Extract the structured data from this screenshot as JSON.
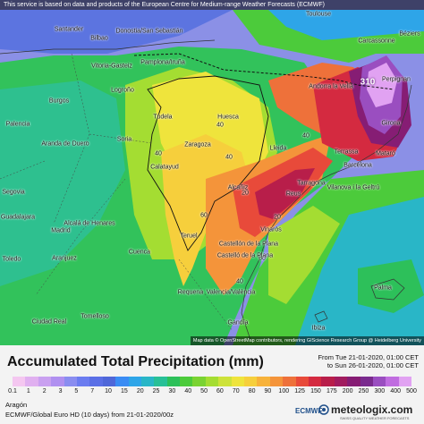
{
  "notice": "This service is based on data and products of the European Centre for Medium-range Weather Forecasts (ECMWF)",
  "attribution": "Map data © OpenStreetMap contributors, rendering GIScience Research Group @ Heidelberg University",
  "colors": {
    "scale": [
      "#f4c7f0",
      "#e0b0f0",
      "#c9a0f0",
      "#b090f0",
      "#8a8df0",
      "#6b7cf0",
      "#5a6fe6",
      "#4f67d9",
      "#3a8cf4",
      "#2ea5e8",
      "#29b6c7",
      "#28c097",
      "#2dc05a",
      "#4ccb3b",
      "#7ad332",
      "#a4dd32",
      "#cde23a",
      "#efe43c",
      "#f6cf3c",
      "#f7b23a",
      "#f4943a",
      "#ee713a",
      "#e84a3a",
      "#d42a40",
      "#b81e4a",
      "#a11c5f",
      "#861d74",
      "#7a2b8e",
      "#9a4ec0",
      "#c06de0",
      "#e1a2f2"
    ]
  },
  "legend": {
    "title": "Accumulated Total Precipitation (mm)",
    "from_line": "From Tue 21-01-2020, 01:00 CET",
    "to_line": "to Sun 26-01-2020, 01:00 CET",
    "ticks": [
      "0.1",
      "1",
      "2",
      "3",
      "5",
      "7",
      "10",
      "15",
      "20",
      "25",
      "30",
      "40",
      "50",
      "60",
      "70",
      "80",
      "90",
      "100",
      "125",
      "150",
      "175",
      "200",
      "250",
      "300",
      "400",
      "500"
    ],
    "region": "Aragón",
    "model": "ECMWF/Global Euro HD (10 days) from  21-01-2020/00z",
    "ecmwf": "ECMWF",
    "brand": "meteologix.com",
    "brand_sub": "SWISS QUALITY WEATHER FORECASTS"
  },
  "map": {
    "max_value": "310",
    "contour_labels": [
      "40",
      "40",
      "40",
      "40",
      "60",
      "20",
      "20",
      "60",
      "40"
    ],
    "cities": [
      {
        "name": "Santander"
      },
      {
        "name": "Bilbao"
      },
      {
        "name": "Donostia/San Sebastián"
      },
      {
        "name": "Toulouse"
      },
      {
        "name": "Vitoria-Gasteiz"
      },
      {
        "name": "Pamplona/Iruña"
      },
      {
        "name": "Andorra la Vella"
      },
      {
        "name": "Carcassonne"
      },
      {
        "name": "Perpignan"
      },
      {
        "name": "Béziers"
      },
      {
        "name": "Burgos"
      },
      {
        "name": "Logroño"
      },
      {
        "name": "Palencia"
      },
      {
        "name": "Tudela"
      },
      {
        "name": "Huesca"
      },
      {
        "name": "Girona"
      },
      {
        "name": "Aranda de Duero"
      },
      {
        "name": "Zaragoza"
      },
      {
        "name": "Lleida"
      },
      {
        "name": "Terrassa"
      },
      {
        "name": "Mataró"
      },
      {
        "name": "Barcelona"
      },
      {
        "name": "Soria"
      },
      {
        "name": "Segovia"
      },
      {
        "name": "Calatayud"
      },
      {
        "name": "Tarragona"
      },
      {
        "name": "Vilanova i la Geltrú"
      },
      {
        "name": "Reus"
      },
      {
        "name": "Alcañiz"
      },
      {
        "name": "Guadalajara"
      },
      {
        "name": "Alcalá de Henares"
      },
      {
        "name": "Madrid"
      },
      {
        "name": "Vinaròs"
      },
      {
        "name": "Teruel"
      },
      {
        "name": "Castellón de la Plana"
      },
      {
        "name": "Castelló de la Plana"
      },
      {
        "name": "Aranjuez"
      },
      {
        "name": "Cuenca"
      },
      {
        "name": "Toledo"
      },
      {
        "name": "Valencia/València"
      },
      {
        "name": "Requena"
      },
      {
        "name": "Palma"
      },
      {
        "name": "Tomelloso"
      },
      {
        "name": "Ciudad Real"
      },
      {
        "name": "Gandía"
      },
      {
        "name": "Ibiza"
      }
    ]
  }
}
